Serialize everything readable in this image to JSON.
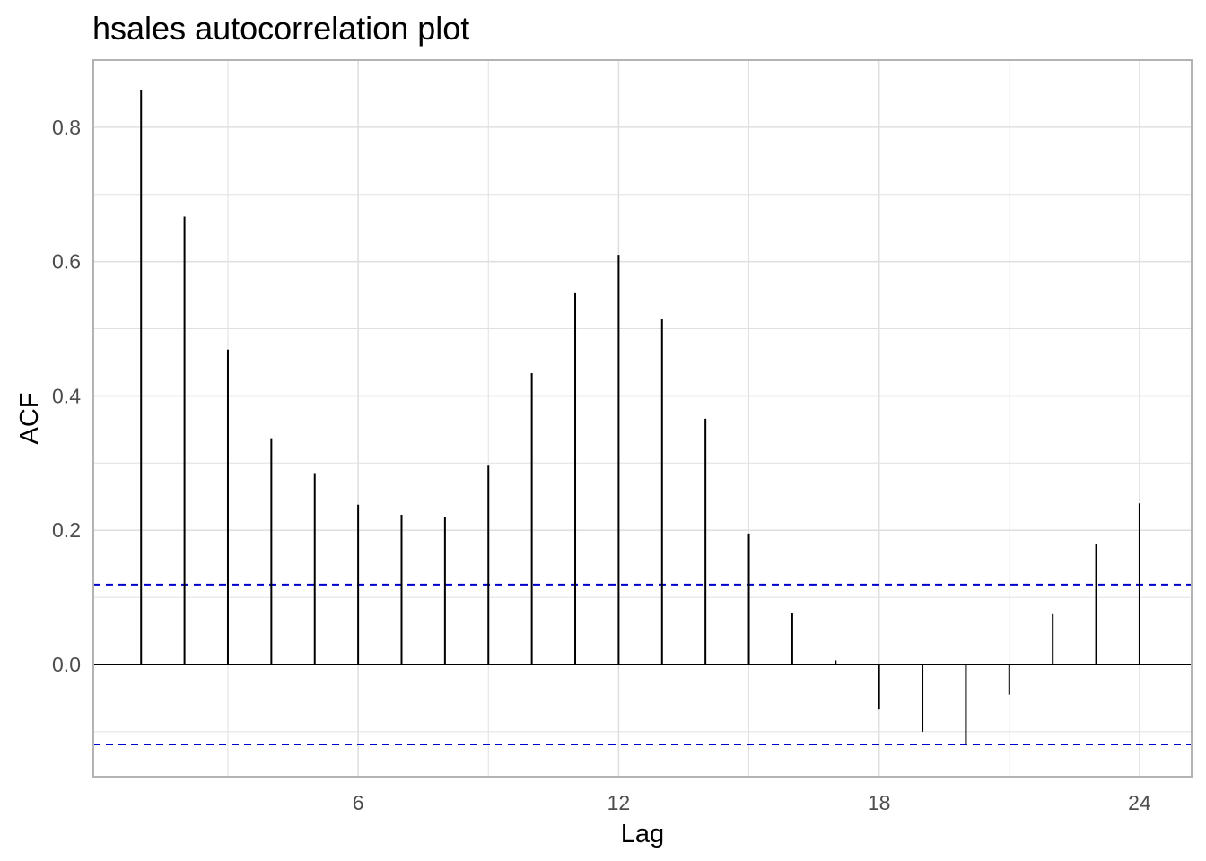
{
  "chart_data": {
    "type": "bar",
    "title": "hsales autocorrelation plot",
    "xlabel": "Lag",
    "ylabel": "ACF",
    "lags": [
      1,
      2,
      3,
      4,
      5,
      6,
      7,
      8,
      9,
      10,
      11,
      12,
      13,
      14,
      15,
      16,
      17,
      18,
      19,
      20,
      21,
      22,
      23,
      24
    ],
    "values": [
      0.856,
      0.667,
      0.469,
      0.337,
      0.285,
      0.238,
      0.223,
      0.219,
      0.296,
      0.434,
      0.553,
      0.61,
      0.514,
      0.366,
      0.195,
      0.076,
      0.006,
      -0.067,
      -0.1,
      -0.119,
      -0.045,
      0.075,
      0.18,
      0.24
    ],
    "confidence_limit": 0.119,
    "xlim": [
      -0.1,
      25.2
    ],
    "ylim": [
      -0.167,
      0.9
    ],
    "x_ticks": [
      6,
      12,
      18,
      24
    ],
    "y_ticks": [
      0.0,
      0.2,
      0.4,
      0.6,
      0.8
    ],
    "x_tick_labels": [
      "6",
      "12",
      "18",
      "24"
    ],
    "y_tick_labels": [
      "0.0",
      "0.2",
      "0.4",
      "0.6",
      "0.8"
    ],
    "grid": true,
    "colors": {
      "bars": "#000000",
      "zero_line": "#000000",
      "confidence_lines": "#0000cc",
      "grid": "#e0e0e0",
      "panel_border": "#b3b3b3"
    }
  }
}
